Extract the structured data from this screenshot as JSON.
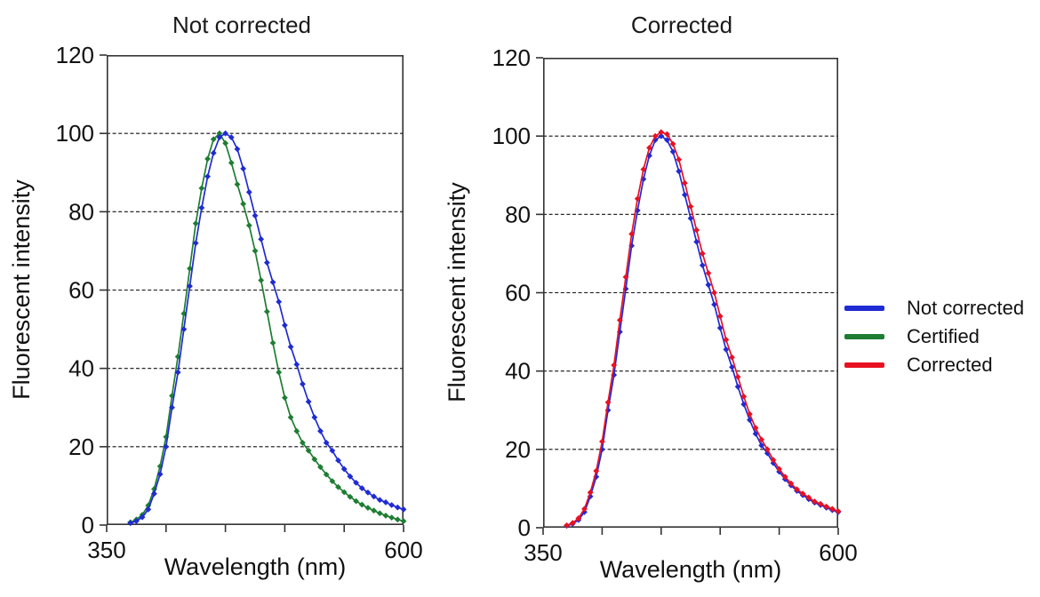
{
  "page": {
    "background": "#ffffff"
  },
  "colors": {
    "not_corrected_blue": "#1F2BD3",
    "certified_green": "#1E7D32",
    "corrected_red": "#E81123",
    "axis": "#333333",
    "gridline": "#111111",
    "text": "#111111"
  },
  "legend": {
    "position": "right-of-second-chart",
    "items": [
      {
        "label": "Not corrected",
        "color": "#1F2BD3"
      },
      {
        "label": "Certified",
        "color": "#1E7D32"
      },
      {
        "label": "Corrected",
        "color": "#E81123"
      }
    ]
  },
  "chart_data": [
    {
      "type": "line",
      "title": "Not corrected",
      "xlabel": "Wavelength (nm)",
      "ylabel": "Fluorescent intensity",
      "xlim": [
        350,
        600
      ],
      "ylim": [
        0,
        120
      ],
      "grid": "horizontal-dashed",
      "y_ticks": [
        0,
        20,
        40,
        60,
        80,
        100,
        120
      ],
      "y_gridlines": [
        20,
        40,
        60,
        80,
        100
      ],
      "x_labeled_ticks": [
        350,
        600
      ],
      "x_minor_ticks": [
        400,
        450,
        500,
        550
      ],
      "marker": "diamond",
      "x": [
        370,
        375,
        380,
        385,
        390,
        395,
        400,
        405,
        410,
        415,
        420,
        425,
        430,
        435,
        440,
        445,
        450,
        455,
        460,
        465,
        470,
        475,
        480,
        485,
        490,
        495,
        500,
        505,
        510,
        515,
        520,
        525,
        530,
        535,
        540,
        545,
        550,
        555,
        560,
        565,
        570,
        575,
        580,
        585,
        590,
        595,
        600
      ],
      "series": [
        {
          "name": "Certified",
          "color": "#1E7D32",
          "values": [
            0.7,
            1.4,
            2.6,
            5,
            9.2,
            15,
            22.5,
            33,
            43,
            54,
            65.5,
            77,
            86,
            93.5,
            98.5,
            100,
            97.5,
            92.5,
            87,
            82,
            76.5,
            70,
            62.5,
            54.5,
            46.5,
            39,
            32.5,
            27.5,
            24,
            21,
            19,
            16.8,
            14.8,
            12.9,
            11.2,
            9.7,
            8.4,
            7.2,
            6.1,
            5.2,
            4.4,
            3.7,
            3,
            2.4,
            1.9,
            1.4,
            1
          ]
        },
        {
          "name": "Not corrected",
          "color": "#1F2BD3",
          "values": [
            0.5,
            1,
            2,
            4,
            8,
            13,
            20,
            30,
            39,
            50,
            61,
            72,
            81,
            89,
            95,
            99,
            100,
            99,
            96,
            91,
            85,
            79,
            73,
            67,
            62,
            57,
            51,
            45.5,
            41,
            36,
            31.5,
            27.5,
            24,
            21,
            19,
            16.5,
            14.3,
            12.4,
            10.8,
            9.4,
            8.3,
            7.3,
            6.4,
            5.8,
            5.1,
            4.5,
            4
          ]
        }
      ]
    },
    {
      "type": "line",
      "title": "Corrected",
      "xlabel": "Wavelength (nm)",
      "ylabel": "Fluorescent intensity",
      "xlim": [
        350,
        600
      ],
      "ylim": [
        0,
        120
      ],
      "grid": "horizontal-dashed",
      "y_ticks": [
        0,
        20,
        40,
        60,
        80,
        100,
        120
      ],
      "y_gridlines": [
        20,
        40,
        60,
        80,
        100
      ],
      "x_labeled_ticks": [
        350,
        600
      ],
      "x_minor_ticks": [
        400,
        450,
        500,
        550
      ],
      "marker": "diamond",
      "x": [
        370,
        375,
        380,
        385,
        390,
        395,
        400,
        405,
        410,
        415,
        420,
        425,
        430,
        435,
        440,
        445,
        450,
        455,
        460,
        465,
        470,
        475,
        480,
        485,
        490,
        495,
        500,
        505,
        510,
        515,
        520,
        525,
        530,
        535,
        540,
        545,
        550,
        555,
        560,
        565,
        570,
        575,
        580,
        585,
        590,
        595,
        600
      ],
      "series": [
        {
          "name": "Not corrected",
          "color": "#1F2BD3",
          "values": [
            0.5,
            1,
            2,
            4,
            8,
            13,
            20,
            30,
            39,
            50,
            61,
            72,
            81,
            89,
            95,
            99,
            100,
            99,
            96,
            91,
            85,
            79,
            73,
            67,
            62,
            57,
            51,
            45.5,
            41,
            36,
            31.5,
            27.5,
            24,
            21,
            19,
            16.5,
            14.3,
            12.4,
            10.8,
            9.4,
            8.3,
            7.3,
            6.4,
            5.8,
            5.1,
            4.5,
            4
          ]
        },
        {
          "name": "Corrected",
          "color": "#E81123",
          "values": [
            0.6,
            1.2,
            2.4,
            4.8,
            9,
            14.5,
            22,
            32,
            41.5,
            53,
            64,
            75,
            84,
            91.5,
            97,
            100,
            101,
            100.5,
            98,
            94,
            88,
            82,
            76,
            70,
            65,
            60,
            54,
            48,
            43.5,
            38.5,
            33.5,
            29,
            25.5,
            22.5,
            20,
            17.3,
            15,
            13,
            11.3,
            9.8,
            8.7,
            7.7,
            6.7,
            6.1,
            5.4,
            4.8,
            4.2
          ]
        }
      ]
    }
  ]
}
